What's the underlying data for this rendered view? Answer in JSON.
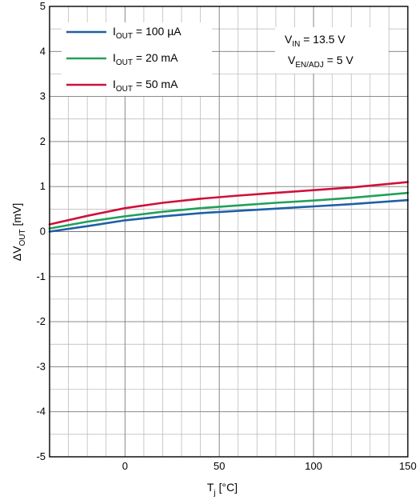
{
  "chart_data": {
    "type": "line",
    "xlabel": {
      "main": "T",
      "sub": "j",
      "rest": " [°C]"
    },
    "ylabel": {
      "prefix": "ΔV",
      "sub": "OUT",
      "rest": " [mV]"
    },
    "xlim": [
      -40,
      150
    ],
    "ylim": [
      -5,
      5
    ],
    "x_ticks": [
      0,
      50,
      100,
      150
    ],
    "x_tick_labels": [
      "0",
      "50",
      "100",
      "150"
    ],
    "y_ticks": [
      -5,
      -4,
      -3,
      -2,
      -1,
      0,
      1,
      2,
      3,
      4,
      5
    ],
    "y_tick_labels": [
      "-5",
      "-4",
      "-3",
      "-2",
      "-1",
      "0",
      "1",
      "2",
      "3",
      "4",
      "5"
    ],
    "grid": true,
    "legend_position": "top-left",
    "series": [
      {
        "name": "I_OUT = 100 µA",
        "label_main": "I",
        "label_sub": "OUT",
        "label_rest": " = 100 µA",
        "color": "#1f5fa8",
        "x": [
          -40,
          -20,
          0,
          20,
          40,
          60,
          80,
          100,
          120,
          150
        ],
        "y": [
          0.0,
          0.12,
          0.25,
          0.34,
          0.41,
          0.46,
          0.51,
          0.56,
          0.61,
          0.7
        ]
      },
      {
        "name": "I_OUT = 20 mA",
        "label_main": "I",
        "label_sub": "OUT",
        "label_rest": " = 20 mA",
        "color": "#22a05a",
        "x": [
          -40,
          -20,
          0,
          20,
          40,
          60,
          80,
          100,
          120,
          150
        ],
        "y": [
          0.07,
          0.22,
          0.34,
          0.44,
          0.52,
          0.58,
          0.64,
          0.69,
          0.75,
          0.86
        ]
      },
      {
        "name": "I_OUT = 50 mA",
        "label_main": "I",
        "label_sub": "OUT",
        "label_rest": " = 50 mA",
        "color": "#d0103a",
        "x": [
          -40,
          -20,
          0,
          20,
          40,
          60,
          80,
          100,
          120,
          150
        ],
        "y": [
          0.16,
          0.35,
          0.52,
          0.64,
          0.73,
          0.8,
          0.86,
          0.92,
          0.98,
          1.1
        ]
      }
    ],
    "annotations": [
      {
        "main": "V",
        "sub": "IN",
        "rest": " = 13.5 V"
      },
      {
        "main": "V",
        "sub": "EN/ADJ",
        "rest": " = 5 V"
      }
    ]
  }
}
